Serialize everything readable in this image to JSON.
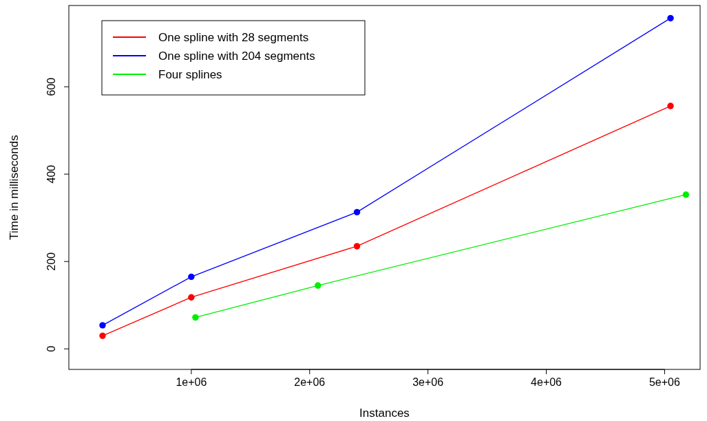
{
  "chart_data": {
    "type": "line",
    "xlabel": "Instances",
    "ylabel": "Time in milliseconds",
    "xlim": [
      -35000,
      5300000
    ],
    "ylim": [
      -47,
      786
    ],
    "xticks": [
      {
        "value": 1000000,
        "label": "1e+06"
      },
      {
        "value": 2000000,
        "label": "2e+06"
      },
      {
        "value": 3000000,
        "label": "3e+06"
      },
      {
        "value": 4000000,
        "label": "4e+06"
      },
      {
        "value": 5000000,
        "label": "5e+06"
      }
    ],
    "yticks": [
      0,
      200,
      400,
      600
    ],
    "marker": "circle",
    "grid": false,
    "legend": "top left",
    "series": [
      {
        "name": "One spline with 28 segments",
        "color": "#ff0000",
        "x": [
          250000,
          1000000,
          2400000,
          5050000
        ],
        "values": [
          30,
          118,
          235,
          556
        ]
      },
      {
        "name": "One spline with 204 segments",
        "color": "#0000ff",
        "x": [
          250000,
          1000000,
          2400000,
          5050000
        ],
        "values": [
          54,
          165,
          313,
          757
        ]
      },
      {
        "name": "Four splines",
        "color": "#00ee00",
        "x": [
          1035000,
          2070000,
          5180000
        ],
        "values": [
          72,
          145,
          353
        ]
      }
    ]
  }
}
